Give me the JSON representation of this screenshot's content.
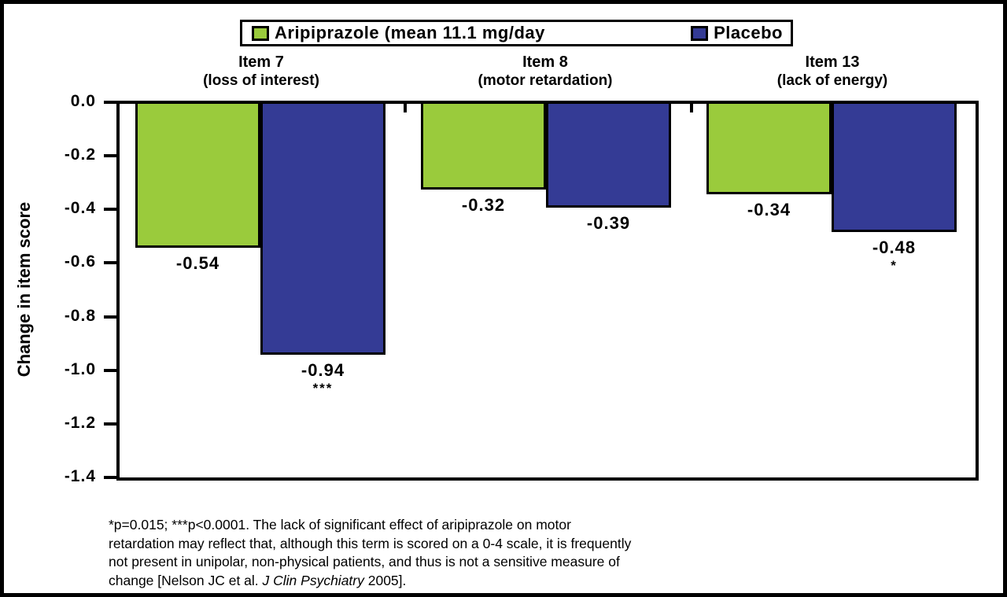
{
  "chart_data": {
    "type": "bar",
    "title": "",
    "ylabel": "Change in item score",
    "xlabel": "",
    "ylim": [
      -1.4,
      0.0
    ],
    "ytick_step": 0.2,
    "yticks": [
      "0.0",
      "-0.2",
      "-0.4",
      "-0.6",
      "-0.8",
      "-1.0",
      "-1.2",
      "-1.4"
    ],
    "grid": false,
    "legend_position": "top",
    "categories": [
      {
        "name": "Item 7",
        "sublabel": "(loss of interest)"
      },
      {
        "name": "Item 8",
        "sublabel": "(motor retardation)"
      },
      {
        "name": "Item 13",
        "sublabel": "(lack of energy)"
      }
    ],
    "series": [
      {
        "name": "Aripiprazole (mean 11.1 mg/day",
        "color": "#9ACB3C",
        "values": [
          -0.54,
          -0.32,
          -0.34
        ],
        "value_labels": [
          "-0.54",
          "-0.32",
          "-0.34"
        ],
        "sig_markers": [
          "",
          "",
          ""
        ]
      },
      {
        "name": "Placebo",
        "color": "#343B95",
        "values": [
          -0.94,
          -0.39,
          -0.48
        ],
        "value_labels": [
          "-0.94",
          "-0.39",
          "-0.48"
        ],
        "sig_markers": [
          "***",
          "",
          "*"
        ]
      }
    ]
  },
  "footnote": {
    "line1": "*p=0.015; ***p<0.0001. The lack of significant effect of aripiprazole on motor",
    "line2": "retardation may reflect that, although this term is scored on a 0-4 scale, it is frequently",
    "line3": "not present in unipolar, non-physical patients, and thus is not a sensitive measure of",
    "line4_pre": "change [Nelson JC et al. ",
    "line4_italic": "J Clin Psychiatry",
    "line4_post": " 2005]."
  },
  "colors": {
    "aripiprazole": "#9ACB3C",
    "placebo": "#343B95",
    "axis": "#000000",
    "background": "#FFFFFF"
  }
}
